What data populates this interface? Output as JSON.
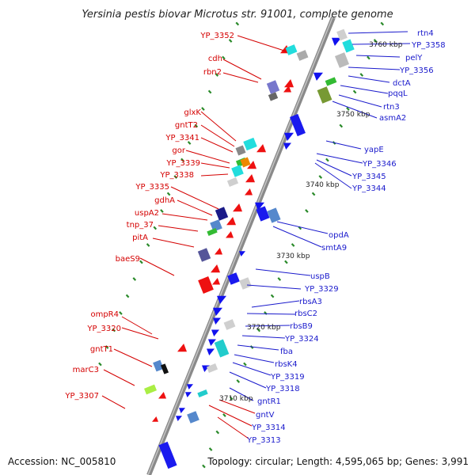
{
  "title": "Yersinia pestis biovar Microtus str. 91001, complete genome",
  "accession": "Accession: NC_005810",
  "topology": "Topology: circular; Length: 4,595,065 bp; Genes: 3,991",
  "colors": {
    "left_label": "#d40000",
    "right_label": "#1a1acc",
    "backbone": "#8a8a8a",
    "tick": "#2a8a2a",
    "leader": "#1a1acc"
  },
  "scale_ticks": [
    {
      "label": "3760 kbp"
    },
    {
      "label": "3750 kbp"
    },
    {
      "label": "3740 kbp"
    },
    {
      "label": "3730 kbp"
    },
    {
      "label": "3720 kbp"
    },
    {
      "label": "3710 kbp"
    }
  ],
  "left_genes": [
    {
      "name": "YP_3352"
    },
    {
      "name": "cdh"
    },
    {
      "name": "rbn2"
    },
    {
      "name": "glxK"
    },
    {
      "name": "gntT2"
    },
    {
      "name": "YP_3341"
    },
    {
      "name": "gor"
    },
    {
      "name": "YP_3339"
    },
    {
      "name": "YP_3338"
    },
    {
      "name": "YP_3335"
    },
    {
      "name": "gdhA"
    },
    {
      "name": "uspA2"
    },
    {
      "name": "tnp_37"
    },
    {
      "name": "pitA"
    },
    {
      "name": "baeS9"
    },
    {
      "name": "ompR4"
    },
    {
      "name": "YP_3320"
    },
    {
      "name": "gntT1"
    },
    {
      "name": "marC3"
    },
    {
      "name": "YP_3307"
    }
  ],
  "right_genes": [
    {
      "name": "rtn4"
    },
    {
      "name": "YP_3358"
    },
    {
      "name": "pelY"
    },
    {
      "name": "YP_3356"
    },
    {
      "name": "dctA"
    },
    {
      "name": "pqqL"
    },
    {
      "name": "rtn3"
    },
    {
      "name": "asmA2"
    },
    {
      "name": "yapE"
    },
    {
      "name": "YP_3346"
    },
    {
      "name": "YP_3345"
    },
    {
      "name": "YP_3344"
    },
    {
      "name": "opdA"
    },
    {
      "name": "smtA9"
    },
    {
      "name": "uspB"
    },
    {
      "name": "YP_3329"
    },
    {
      "name": "rbsA3"
    },
    {
      "name": "rbsC2"
    },
    {
      "name": "rbsB9"
    },
    {
      "name": "YP_3324"
    },
    {
      "name": "fba"
    },
    {
      "name": "rbsK4"
    },
    {
      "name": "YP_3319"
    },
    {
      "name": "YP_3318"
    },
    {
      "name": "gntR1"
    },
    {
      "name": "gntV"
    },
    {
      "name": "YP_3314"
    },
    {
      "name": "YP_3313"
    }
  ]
}
